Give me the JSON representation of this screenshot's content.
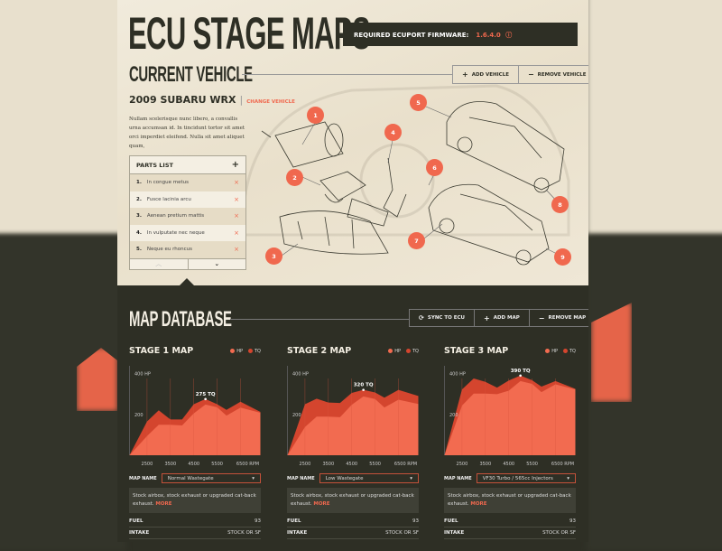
{
  "header": {
    "title": "ECU STAGE MAPS",
    "firmware_label": "REQUIRED ECUPORT FIRMWARE:",
    "firmware_version": "1.6.4.0",
    "firmware_icon": "info-circle-icon"
  },
  "vehicle": {
    "heading": "CURRENT VEHICLE",
    "add_label": "ADD VEHICLE",
    "remove_label": "REMOVE VEHICLE",
    "name": "2009 SUBARU WRX",
    "change_label": "CHANGE VEHICLE",
    "description": "Nullam scelerisque nunc libero, a convallis urna accumsan id. In tincidunt tortor sit amet orci imperdiet eleifend. Nulla sit amet aliquet quam,",
    "parts_title": "PARTS LIST",
    "parts": [
      {
        "n": "1.",
        "label": "In congue metus"
      },
      {
        "n": "2.",
        "label": "Fusce lacinia arcu"
      },
      {
        "n": "3.",
        "label": "Aenean pretium mattis"
      },
      {
        "n": "4.",
        "label": "In vulputate nec neque"
      },
      {
        "n": "5.",
        "label": "Neque eu rhoncus"
      }
    ],
    "markers": [
      "1",
      "2",
      "3",
      "4",
      "5",
      "6",
      "7",
      "8",
      "9"
    ]
  },
  "database": {
    "heading": "MAP DATABASE",
    "sync_label": "SYNC TO ECU",
    "add_label": "ADD MAP",
    "remove_label": "REMOVE MAP"
  },
  "colors": {
    "hp": "#f26b50",
    "tq": "#d4452e",
    "accent": "#f0684e",
    "dark": "#2e2f25"
  },
  "chart_data": [
    {
      "type": "area",
      "title": "STAGE 1 MAP",
      "legend": [
        "HP",
        "TQ"
      ],
      "xlim": [
        1750,
        7350
      ],
      "ylim": [
        0,
        430
      ],
      "x_ticks": [
        "2500",
        "3500",
        "4500",
        "5500",
        "6500 RPM"
      ],
      "y_ticks": [
        "200",
        "400 HP"
      ],
      "annotation": "275 TQ",
      "x": [
        1750,
        2500,
        3000,
        3500,
        4000,
        4500,
        5000,
        5500,
        5900,
        6500,
        7350
      ],
      "series": [
        {
          "name": "TQ",
          "values": [
            0,
            165,
            220,
            175,
            175,
            250,
            275,
            250,
            222,
            262,
            212
          ]
        },
        {
          "name": "HP",
          "values": [
            0,
            94,
            149,
            149,
            146,
            205,
            248,
            235,
            194,
            233,
            208
          ]
        }
      ],
      "map_name": "Normal Wastegate",
      "description": "Stock airbox, stock exhaust or upgraded cat-back exhaust.",
      "more": "MORE",
      "fuel": "93",
      "intake": "STOCK OR SF"
    },
    {
      "type": "area",
      "title": "STAGE 2 MAP",
      "legend": [
        "HP",
        "TQ"
      ],
      "xlim": [
        1750,
        7350
      ],
      "ylim": [
        0,
        430
      ],
      "x_ticks": [
        "2500",
        "3500",
        "4500",
        "5500",
        "6500 RPM"
      ],
      "y_ticks": [
        "200",
        "400 HP"
      ],
      "annotation": "320 TQ",
      "x": [
        1750,
        2500,
        3000,
        3500,
        4000,
        4500,
        5000,
        5500,
        5900,
        6500,
        7350
      ],
      "series": [
        {
          "name": "TQ",
          "values": [
            0,
            250,
            277,
            258,
            256,
            305,
            320,
            307,
            282,
            320,
            290
          ]
        },
        {
          "name": "HP",
          "values": [
            0,
            138,
            189,
            189,
            186,
            247,
            288,
            275,
            234,
            272,
            251
          ]
        }
      ],
      "map_name": "Low Wastegate",
      "description": "Stock airbox, stock exhaust or upgraded cat-back exhaust.",
      "more": "MORE",
      "fuel": "93",
      "intake": "STOCK OR SF"
    },
    {
      "type": "area",
      "title": "STAGE 3 MAP",
      "legend": [
        "HP",
        "TQ"
      ],
      "xlim": [
        1750,
        7350
      ],
      "ylim": [
        0,
        430
      ],
      "x_ticks": [
        "2500",
        "3500",
        "4500",
        "5500",
        "6500 RPM"
      ],
      "y_ticks": [
        "200",
        "400 HP"
      ],
      "annotation": "390 TQ",
      "x": [
        1750,
        2500,
        3000,
        3500,
        4000,
        4500,
        5000,
        5500,
        5900,
        6500,
        7350
      ],
      "series": [
        {
          "name": "TQ",
          "values": [
            0,
            322,
            376,
            359,
            331,
            366,
            390,
            367,
            336,
            363,
            325
          ]
        },
        {
          "name": "HP",
          "values": [
            0,
            243,
            302,
            302,
            299,
            316,
            363,
            349,
            309,
            347,
            322
          ]
        }
      ],
      "map_name": "VF30 Turbo / 565cc Injectors",
      "description": "Stock airbox, stock exhaust or upgraded cat-back exhaust.",
      "more": "MORE",
      "fuel": "93",
      "intake": "STOCK OR SF"
    }
  ],
  "labels": {
    "map_name": "MAP NAME",
    "fuel": "FUEL",
    "intake": "INTAKE"
  }
}
